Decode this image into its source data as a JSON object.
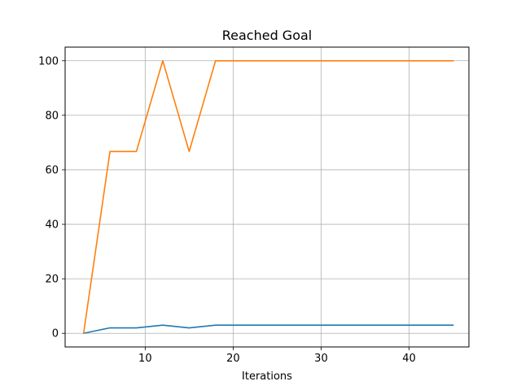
{
  "chart_data": {
    "type": "line",
    "title": "Reached Goal",
    "xlabel": "Iterations",
    "ylabel": "",
    "xlim": [
      0.9,
      46.8
    ],
    "ylim": [
      -5,
      105
    ],
    "xticks": [
      10,
      20,
      30,
      40
    ],
    "yticks": [
      0,
      20,
      40,
      60,
      80,
      100
    ],
    "grid": true,
    "series": [
      {
        "color": "#1f77b4",
        "x": [
          3,
          6,
          9,
          12,
          15,
          18,
          21,
          24,
          27,
          30,
          33,
          36,
          39,
          42,
          45
        ],
        "y": [
          0,
          2,
          2,
          3,
          2,
          3,
          3,
          3,
          3,
          3,
          3,
          3,
          3,
          3,
          3
        ]
      },
      {
        "color": "#ff7f0e",
        "x": [
          3,
          6,
          9,
          12,
          15,
          18,
          21,
          24,
          27,
          30,
          33,
          36,
          39,
          42,
          45
        ],
        "y": [
          0,
          66.7,
          66.7,
          100,
          66.7,
          100,
          100,
          100,
          100,
          100,
          100,
          100,
          100,
          100,
          100
        ]
      }
    ]
  }
}
